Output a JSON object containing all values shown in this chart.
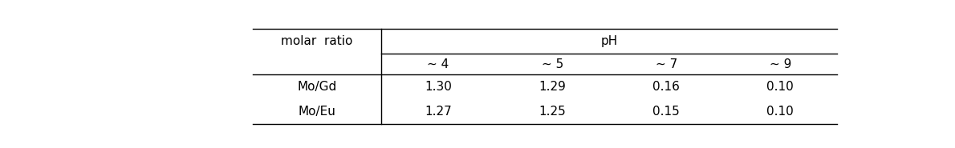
{
  "col_header_row1_left": "molar  ratio",
  "col_header_row1_right": "pH",
  "col_header_row2": [
    "~ 4",
    "~ 5",
    "~ 7",
    "~ 9"
  ],
  "rows": [
    [
      "Mo/Gd",
      "1.30",
      "1.29",
      "0.16",
      "0.10"
    ],
    [
      "Mo/Eu",
      "1.27",
      "1.25",
      "0.15",
      "0.10"
    ]
  ],
  "font_family": "DejaVu Sans",
  "font_size": 11,
  "border_color": "#000000",
  "background_color": "#ffffff",
  "text_color": "#000000"
}
